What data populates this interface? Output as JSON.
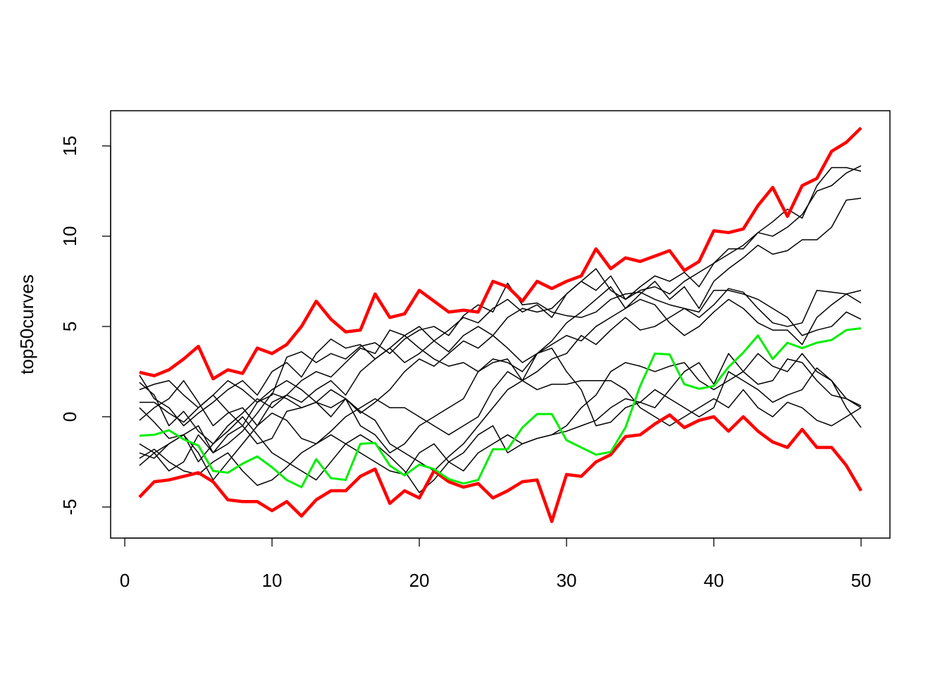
{
  "chart_data": {
    "type": "line",
    "y_label": "top50curves",
    "x": [
      1,
      2,
      3,
      4,
      5,
      6,
      7,
      8,
      9,
      10,
      11,
      12,
      13,
      14,
      15,
      16,
      17,
      18,
      19,
      20,
      21,
      22,
      23,
      24,
      25,
      26,
      27,
      28,
      29,
      30,
      31,
      32,
      33,
      34,
      35,
      36,
      37,
      38,
      39,
      40,
      41,
      42,
      43,
      44,
      45,
      46,
      47,
      48,
      49,
      50
    ],
    "xlim": [
      -0.96,
      51.96
    ],
    "xticks": [
      0,
      10,
      20,
      30,
      40,
      50
    ],
    "ylim": [
      -6.72,
      16.95
    ],
    "yticks": [
      -5,
      0,
      5,
      10,
      15
    ],
    "grid": false,
    "series": [
      {
        "color": "#000000",
        "linewidth": 1.5,
        "values": [
          2.3,
          1.0,
          0.5,
          -0.5,
          0.2,
          0.8,
          1.5,
          2.0,
          1.2,
          2.5,
          3.0,
          2.2,
          3.5,
          4.3,
          3.8,
          4.0,
          3.2,
          3.8,
          4.5,
          5.0,
          4.2,
          4.8,
          5.5,
          5.2,
          6.0,
          6.5,
          5.8,
          6.2,
          5.5,
          6.8,
          7.5,
          8.2,
          7.0,
          6.5,
          7.2,
          7.8,
          7.5,
          8.0,
          7.2,
          8.5,
          9.3,
          9.3,
          10.2,
          10.8,
          11.5,
          11.0,
          12.8,
          13.8,
          13.8,
          13.6
        ]
      },
      {
        "color": "#000000",
        "linewidth": 1.5,
        "values": [
          1.9,
          1.2,
          -0.5,
          0.3,
          -0.8,
          -1.5,
          -0.5,
          0.2,
          1.0,
          0.5,
          1.2,
          0.8,
          1.5,
          2.0,
          1.2,
          2.5,
          3.2,
          3.8,
          3.0,
          3.5,
          4.2,
          3.6,
          4.5,
          5.0,
          4.5,
          5.5,
          6.0,
          5.8,
          6.0,
          6.8,
          7.5,
          7.0,
          7.8,
          6.5,
          7.0,
          7.2,
          6.8,
          7.5,
          8.0,
          8.5,
          9.0,
          9.5,
          10.2,
          10.0,
          10.5,
          11.2,
          12.5,
          12.8,
          13.5,
          13.9
        ]
      },
      {
        "color": "#000000",
        "linewidth": 1.5,
        "values": [
          1.5,
          1.8,
          2.0,
          1.2,
          0.5,
          1.2,
          0.3,
          -0.5,
          0.8,
          1.5,
          2.0,
          1.5,
          0.8,
          0.5,
          1.0,
          0.2,
          0.8,
          1.5,
          2.5,
          3.2,
          2.8,
          3.5,
          4.2,
          3.8,
          4.5,
          3.8,
          3.0,
          3.5,
          4.2,
          5.2,
          5.8,
          6.5,
          7.2,
          6.0,
          6.8,
          7.5,
          6.5,
          7.2,
          6.0,
          7.5,
          8.2,
          8.8,
          9.5,
          9.0,
          9.2,
          9.8,
          9.8,
          10.5,
          12.0,
          12.1
        ]
      },
      {
        "color": "#000000",
        "linewidth": 1.5,
        "values": [
          0.8,
          0.8,
          0.2,
          -0.3,
          0.5,
          1.2,
          2.0,
          1.5,
          0.8,
          1.2,
          3.3,
          3.6,
          3.0,
          3.5,
          3.2,
          3.9,
          4.1,
          3.5,
          4.3,
          4.8,
          5.0,
          4.5,
          5.6,
          6.2,
          5.8,
          7.4,
          6.2,
          6.3,
          5.8,
          5.6,
          5.5,
          5.8,
          6.5,
          6.8,
          6.9,
          6.5,
          6.2,
          6.0,
          5.5,
          6.2,
          7.1,
          6.9,
          6.0,
          5.2,
          5.0,
          5.2,
          7.0,
          6.9,
          6.8,
          7.0
        ]
      },
      {
        "color": "#000000",
        "linewidth": 1.5,
        "values": [
          0.5,
          -0.3,
          -1.2,
          -1.0,
          -0.5,
          -2.0,
          -1.5,
          -0.8,
          0.2,
          1.3,
          1.0,
          0.5,
          0.8,
          1.5,
          1.0,
          0.3,
          -0.2,
          -1.5,
          -2.0,
          -2.5,
          -3.0,
          -2.2,
          -1.5,
          -0.5,
          0.5,
          1.5,
          2.0,
          3.5,
          4.0,
          4.5,
          4.2,
          5.0,
          5.5,
          6.0,
          6.5,
          6.2,
          5.2,
          4.5,
          5.0,
          5.8,
          6.5,
          6.0,
          5.2,
          4.8,
          4.8,
          4.0,
          5.5,
          6.2,
          6.8,
          6.3
        ]
      },
      {
        "color": "#000000",
        "linewidth": 1.5,
        "values": [
          -0.2,
          0.5,
          1.0,
          2.0,
          0.8,
          -0.5,
          0.2,
          0.5,
          -0.5,
          0.8,
          1.2,
          2.0,
          2.5,
          2.2,
          3.0,
          3.8,
          3.5,
          4.8,
          4.5,
          3.8,
          3.2,
          2.8,
          3.0,
          2.5,
          3.0,
          3.2,
          2.0,
          2.5,
          3.2,
          3.5,
          4.5,
          4.0,
          4.8,
          5.5,
          4.8,
          5.0,
          5.5,
          6.0,
          5.8,
          7.0,
          7.0,
          6.8,
          6.5,
          6.0,
          5.5,
          4.5,
          4.8,
          5.0,
          5.8,
          5.4
        ]
      },
      {
        "color": "#000000",
        "linewidth": 1.5,
        "values": [
          -1.5,
          -2.0,
          -3.0,
          -2.5,
          -1.0,
          -2.0,
          -1.0,
          -0.5,
          -1.5,
          -1.2,
          0.3,
          0.5,
          0.8,
          0.0,
          1.0,
          -0.5,
          -1.0,
          -2.0,
          -1.5,
          -0.5,
          0.0,
          0.5,
          1.0,
          2.5,
          3.2,
          3.0,
          2.5,
          3.5,
          3.8,
          2.5,
          1.5,
          -0.5,
          -0.3,
          0.5,
          0.8,
          0.5,
          1.5,
          2.5,
          3.0,
          1.8,
          3.5,
          2.5,
          1.8,
          2.0,
          3.2,
          3.0,
          2.0,
          1.2,
          1.0,
          0.6
        ]
      },
      {
        "color": "#000000",
        "linewidth": 1.5,
        "values": [
          -2.0,
          -2.3,
          -1.5,
          -1.0,
          -2.0,
          -3.5,
          -2.5,
          -1.5,
          -0.5,
          0.2,
          -0.2,
          -1.2,
          -1.5,
          -0.8,
          0.0,
          0.5,
          1.0,
          0.5,
          0.5,
          0.0,
          -0.5,
          -1.0,
          -0.5,
          0.0,
          1.5,
          2.5,
          2.0,
          1.5,
          1.8,
          1.8,
          2.0,
          2.0,
          2.0,
          1.5,
          0.5,
          0.0,
          -0.5,
          0.0,
          0.5,
          1.0,
          0.5,
          1.5,
          0.5,
          0.0,
          0.8,
          0.5,
          -0.2,
          -0.5,
          0.0,
          0.5
        ]
      },
      {
        "color": "#000000",
        "linewidth": 1.5,
        "values": [
          -2.3,
          -1.8,
          -2.5,
          -3.0,
          -3.2,
          -2.5,
          -2.0,
          -3.0,
          -3.8,
          -3.5,
          -2.8,
          -2.0,
          -1.5,
          -1.0,
          -1.5,
          -2.0,
          -2.5,
          -3.0,
          -3.2,
          -2.0,
          -1.5,
          -2.5,
          -3.0,
          -2.0,
          -1.5,
          -1.0,
          -1.5,
          -1.2,
          -1.0,
          -0.5,
          0.5,
          1.2,
          2.5,
          3.0,
          2.8,
          2.5,
          2.8,
          3.0,
          2.0,
          1.5,
          2.0,
          2.5,
          3.5,
          2.8,
          2.5,
          3.5,
          2.5,
          2.0,
          0.5,
          -0.6
        ]
      },
      {
        "color": "#000000",
        "linewidth": 1.5,
        "values": [
          -2.7,
          -2.0,
          -1.5,
          -1.0,
          -2.5,
          -1.5,
          -0.8,
          0.0,
          -1.0,
          -2.0,
          -2.5,
          -3.0,
          -3.5,
          -2.5,
          -1.5,
          -1.0,
          -1.5,
          -2.2,
          -3.0,
          -4.2,
          -3.5,
          -2.5,
          -2.0,
          -1.0,
          -0.5,
          -2.0,
          -1.5,
          -1.2,
          -1.0,
          -0.8,
          -0.5,
          -0.2,
          0.5,
          1.0,
          0.8,
          1.5,
          1.0,
          0.5,
          0.0,
          0.5,
          2.5,
          2.0,
          1.5,
          0.8,
          1.2,
          1.5,
          2.7,
          2.0,
          1.0,
          0.5
        ]
      },
      {
        "color": "#ff0000",
        "linewidth": 4.5,
        "values": [
          2.46,
          2.27,
          2.6,
          3.2,
          3.9,
          2.1,
          2.6,
          2.4,
          3.8,
          3.5,
          4.0,
          5.0,
          6.4,
          5.4,
          4.7,
          4.8,
          6.8,
          5.5,
          5.7,
          7.0,
          6.4,
          5.8,
          5.9,
          5.8,
          7.5,
          7.2,
          6.4,
          7.5,
          7.1,
          7.5,
          7.8,
          9.3,
          8.2,
          8.8,
          8.6,
          8.9,
          9.2,
          8.1,
          8.6,
          10.3,
          10.2,
          10.4,
          11.7,
          12.7,
          11.1,
          12.8,
          13.2,
          14.7,
          15.2,
          16.0
        ]
      },
      {
        "color": "#ff0000",
        "linewidth": 4.5,
        "values": [
          -4.45,
          -3.6,
          -3.5,
          -3.3,
          -3.1,
          -3.6,
          -4.6,
          -4.7,
          -4.7,
          -5.2,
          -4.7,
          -5.5,
          -4.6,
          -4.1,
          -4.1,
          -3.3,
          -2.9,
          -4.8,
          -4.1,
          -4.5,
          -3.0,
          -3.6,
          -3.9,
          -3.7,
          -4.5,
          -4.1,
          -3.6,
          -3.5,
          -5.8,
          -3.2,
          -3.3,
          -2.5,
          -2.1,
          -1.1,
          -1.0,
          -0.4,
          0.1,
          -0.6,
          -0.2,
          0.0,
          -0.8,
          0.0,
          -0.8,
          -1.4,
          -1.7,
          -0.7,
          -1.7,
          -1.7,
          -2.7,
          -4.1
        ]
      },
      {
        "color": "#00ee00",
        "linewidth": 3,
        "values": [
          -1.05,
          -1.0,
          -0.75,
          -1.25,
          -1.6,
          -3.0,
          -3.1,
          -2.6,
          -2.2,
          -2.8,
          -3.5,
          -3.9,
          -2.35,
          -3.4,
          -3.5,
          -1.5,
          -1.45,
          -2.7,
          -3.25,
          -2.65,
          -2.9,
          -3.45,
          -3.7,
          -3.5,
          -1.8,
          -1.8,
          -0.6,
          0.15,
          0.15,
          -1.3,
          -1.7,
          -2.1,
          -1.95,
          -0.6,
          1.7,
          3.5,
          3.45,
          1.8,
          1.55,
          1.7,
          2.75,
          3.55,
          4.5,
          3.2,
          4.1,
          3.8,
          4.1,
          4.25,
          4.8,
          4.9
        ]
      }
    ]
  }
}
